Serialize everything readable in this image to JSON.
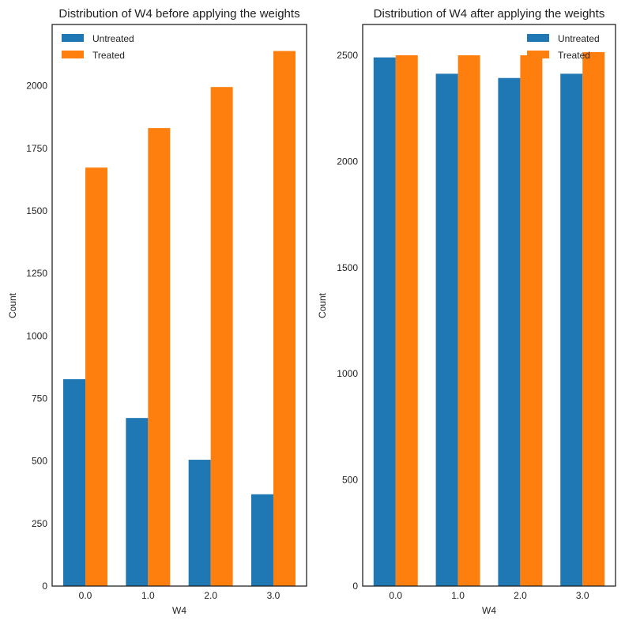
{
  "colors": {
    "untreated": "#1f77b4",
    "treated": "#ff7f0e",
    "axis": "#222222"
  },
  "chart_data": [
    {
      "type": "bar",
      "title": "Distribution of W4 before applying the weights",
      "xlabel": "W4",
      "ylabel": "Count",
      "categories": [
        "0.0",
        "1.0",
        "2.0",
        "3.0"
      ],
      "series": [
        {
          "name": "Untreated",
          "values": [
            827,
            672,
            505,
            367
          ]
        },
        {
          "name": "Treated",
          "values": [
            1673,
            1831,
            1995,
            2139
          ]
        }
      ],
      "ylim": [
        0,
        2245
      ],
      "yticks": [
        0,
        250,
        500,
        750,
        1000,
        1250,
        1500,
        1750,
        2000
      ],
      "legend": "top-left",
      "grid": false
    },
    {
      "type": "bar",
      "title": "Distribution of W4 after applying the weights",
      "xlabel": "W4",
      "ylabel": "Count",
      "categories": [
        "0.0",
        "1.0",
        "2.0",
        "3.0"
      ],
      "series": [
        {
          "name": "Untreated",
          "values": [
            2490,
            2413,
            2393,
            2413
          ]
        },
        {
          "name": "Treated",
          "values": [
            2500,
            2500,
            2500,
            2515
          ]
        }
      ],
      "ylim": [
        0,
        2645
      ],
      "yticks": [
        0,
        500,
        1000,
        1500,
        2000,
        2500
      ],
      "legend": "top-right",
      "grid": false
    }
  ]
}
